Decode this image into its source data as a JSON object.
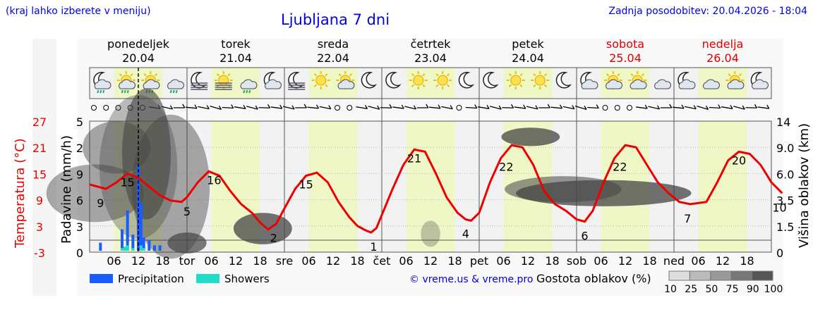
{
  "header": {
    "left_note": "(kraj lahko izberete v meniju)",
    "title": "Ljubljana 7 dni",
    "updated": "Zadnja posodobitev: 20.04.2026 - 18:04"
  },
  "days": [
    {
      "name": "ponedeljek",
      "date": "20.04",
      "weekend": false
    },
    {
      "name": "torek",
      "date": "21.04",
      "weekend": false
    },
    {
      "name": "sreda",
      "date": "22.04",
      "weekend": false
    },
    {
      "name": "četrtek",
      "date": "23.04",
      "weekend": false
    },
    {
      "name": "petek",
      "date": "24.04",
      "weekend": false
    },
    {
      "name": "sobota",
      "date": "25.04",
      "weekend": true
    },
    {
      "name": "nedelja",
      "date": "26.04",
      "weekend": true
    }
  ],
  "day_abbr": [
    "tor",
    "sre",
    "čet",
    "pet",
    "sob",
    "ned"
  ],
  "hour_ticks": [
    "06",
    "12",
    "18"
  ],
  "weather_icons": [
    [
      "moon-cloud-drizzle-icon",
      "sun-cloud-drizzle-icon",
      "sun-cloud-rain-icon",
      "cloud-rain-icon"
    ],
    [
      "moon-fog-icon",
      "sun-fog-icon",
      "cloud-rain-icon",
      "moon-cloud-icon"
    ],
    [
      "moon-fog-icon",
      "sun-icon",
      "sun-cloud-icon",
      "moon-icon"
    ],
    [
      "moon-icon",
      "sun-icon",
      "sun-icon",
      "moon-icon"
    ],
    [
      "moon-icon",
      "sun-icon",
      "sun-icon",
      "moon-icon"
    ],
    [
      "moon-cloud-icon",
      "sun-cloud-icon",
      "sun-cloud-icon",
      "cloud-icon"
    ],
    [
      "moon-cloud-icon",
      "cloud-icon",
      "sun-cloud-icon",
      "moon-cloud-icon"
    ]
  ],
  "colors": {
    "temperature": "#ee0000",
    "precipitation": "#1a5cff",
    "showers": "#22dcc8",
    "daytime_band": "#f0f7c6",
    "night_band": "#f2f2f2",
    "link": "#0000ee",
    "weekend": "#dd0000"
  },
  "chart_data": {
    "type": "line",
    "title": "Ljubljana 7 dni",
    "x_unit": "hours from 20.04 00:00",
    "xlim": [
      0,
      168
    ],
    "now_marker_hour": 18,
    "temperature": {
      "label": "Temperatura (°C)",
      "ylim": [
        -3,
        27
      ],
      "ticks": [
        "27",
        "21",
        "15",
        "9",
        "3",
        "-3"
      ],
      "points": [
        [
          0,
          12.5
        ],
        [
          6,
          11.5
        ],
        [
          10,
          13
        ],
        [
          14,
          15
        ],
        [
          18,
          14
        ],
        [
          22,
          12
        ],
        [
          26,
          10
        ],
        [
          30,
          8.8
        ],
        [
          34,
          8.5
        ],
        [
          36,
          9.6
        ],
        [
          40,
          13
        ],
        [
          44,
          15.5
        ],
        [
          48,
          14.5
        ],
        [
          52,
          11
        ],
        [
          56,
          8
        ],
        [
          60,
          6
        ],
        [
          63,
          3.8
        ],
        [
          66,
          2.2
        ],
        [
          69,
          3.5
        ],
        [
          72,
          7
        ],
        [
          76,
          11.5
        ],
        [
          80,
          14.5
        ],
        [
          84,
          15.2
        ],
        [
          88,
          13
        ],
        [
          92,
          8.5
        ],
        [
          96,
          5
        ],
        [
          99,
          3
        ],
        [
          102,
          2
        ],
        [
          104,
          1.5
        ],
        [
          106,
          2.5
        ],
        [
          108,
          5.5
        ],
        [
          112,
          11.5
        ],
        [
          116,
          17
        ],
        [
          120,
          20.5
        ],
        [
          124,
          20
        ],
        [
          128,
          15
        ],
        [
          132,
          9.5
        ],
        [
          136,
          6
        ],
        [
          139,
          4.5
        ],
        [
          141,
          4.2
        ],
        [
          144,
          6
        ],
        [
          148,
          13
        ],
        [
          152,
          18.5
        ],
        [
          156,
          21.5
        ],
        [
          160,
          21
        ],
        [
          164,
          17
        ],
        [
          166,
          14
        ],
        [
          168,
          11
        ],
        [
          172,
          8
        ],
        [
          176,
          6.5
        ],
        [
          180,
          4.5
        ],
        [
          183,
          4
        ],
        [
          186,
          6.5
        ],
        [
          190,
          13
        ],
        [
          194,
          18.5
        ],
        [
          198,
          21.5
        ],
        [
          202,
          21
        ],
        [
          206,
          17
        ],
        [
          210,
          13
        ],
        [
          214,
          10.5
        ],
        [
          218,
          8.5
        ],
        [
          222,
          8
        ],
        [
          228,
          8.5
        ],
        [
          232,
          13
        ],
        [
          236,
          18
        ],
        [
          240,
          20
        ],
        [
          244,
          19.5
        ],
        [
          248,
          17
        ],
        [
          252,
          13
        ],
        [
          256,
          10.5
        ]
      ],
      "labels": [
        [
          "9",
          4
        ],
        [
          "15",
          14
        ],
        [
          "5",
          36
        ],
        [
          "16",
          46
        ],
        [
          "2",
          68
        ],
        [
          "15",
          80
        ],
        [
          "1",
          105
        ],
        [
          "21",
          120
        ],
        [
          "4",
          139
        ],
        [
          "22",
          154
        ],
        [
          "6",
          183
        ],
        [
          "22",
          196
        ],
        [
          "7",
          221
        ],
        [
          "20",
          240
        ],
        [
          "10",
          255
        ]
      ]
    },
    "precipitation": {
      "label": "Padavine (mm/h)",
      "ticks": [
        "5",
        "2",
        "9",
        "6",
        "3",
        "0"
      ],
      "bars": [
        [
          4,
          0.3
        ],
        [
          12,
          0.8
        ],
        [
          14,
          1.5
        ],
        [
          16,
          0.6
        ],
        [
          18,
          3.2
        ],
        [
          19,
          1.8
        ],
        [
          20,
          0.5
        ],
        [
          22,
          0.4
        ],
        [
          24,
          0.2
        ],
        [
          26,
          0.2
        ]
      ],
      "showers": [
        [
          12,
          0.1
        ],
        [
          13,
          0.15
        ],
        [
          14,
          0.2
        ],
        [
          16,
          0.1
        ],
        [
          19,
          0.2
        ],
        [
          20,
          0.1
        ]
      ]
    },
    "cloud_height": {
      "label": "Višina oblakov (km)",
      "ticks": [
        "14",
        "9.0",
        "6.0",
        "3.5",
        "1.5",
        "0"
      ]
    },
    "legend": [
      {
        "name": "Precipitation",
        "color": "#1a5cff"
      },
      {
        "name": "Showers",
        "color": "#22dcc8"
      }
    ],
    "cloud_density": {
      "label": "Gostota oblakov (%)",
      "levels": [
        "10",
        "25",
        "50",
        "75",
        "90",
        "100"
      ]
    },
    "credit": "© vreme.us & vreme.pro"
  }
}
